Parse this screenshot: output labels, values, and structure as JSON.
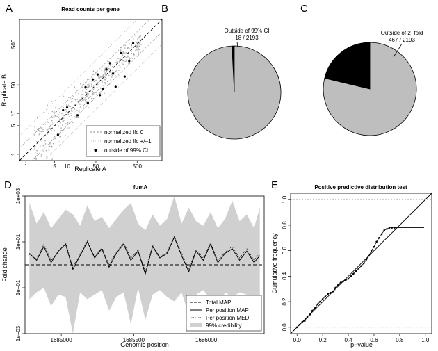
{
  "chart_data": [
    {
      "panel": "A",
      "type": "scatter",
      "title": "Read counts per gene",
      "xlabel": "Replicate A",
      "ylabel": "Replicate B",
      "xscale": "log",
      "yscale": "log",
      "xlim": [
        0.7,
        2000
      ],
      "ylim": [
        0.7,
        2000
      ],
      "xticks": [
        1,
        5,
        10,
        50,
        500
      ],
      "xtick_labels": [
        "1",
        "5",
        "10",
        "50",
        "500"
      ],
      "yticks": [
        1,
        5,
        10,
        50,
        500
      ],
      "ytick_labels": [
        "1",
        "5",
        "10",
        "50",
        "500"
      ],
      "legend_position": "bottom-right",
      "legend": [
        {
          "label": "normalized lfc 0",
          "style": "dashed"
        },
        {
          "label": "normalized lfc +/−1",
          "style": "dotted"
        },
        {
          "label": "outside of 99% CI",
          "style": "point"
        }
      ],
      "outliers": [
        {
          "x": 8,
          "y": 12
        },
        {
          "x": 10,
          "y": 14
        },
        {
          "x": 32,
          "y": 18
        },
        {
          "x": 42,
          "y": 68
        },
        {
          "x": 62,
          "y": 28
        },
        {
          "x": 150,
          "y": 45
        },
        {
          "x": 200,
          "y": 300
        },
        {
          "x": 90,
          "y": 120
        },
        {
          "x": 320,
          "y": 190
        },
        {
          "x": 6,
          "y": 3
        },
        {
          "x": 110,
          "y": 170
        },
        {
          "x": 250,
          "y": 80
        },
        {
          "x": 55,
          "y": 90
        },
        {
          "x": 18,
          "y": 9
        },
        {
          "x": 75,
          "y": 40
        },
        {
          "x": 400,
          "y": 520
        },
        {
          "x": 130,
          "y": 95
        },
        {
          "x": 28,
          "y": 44
        }
      ]
    },
    {
      "panel": "B",
      "type": "pie",
      "slices": [
        {
          "label": "Outside of 99% CI",
          "count": 18,
          "total": 2193,
          "color": "#000000"
        },
        {
          "label": "",
          "count": 2175,
          "total": 2193,
          "color": "#bebebe"
        }
      ],
      "annotation_line1": "Outside of 99% CI",
      "annotation_line2": "18 / 2193"
    },
    {
      "panel": "C",
      "type": "pie",
      "slices": [
        {
          "label": "Outside of 2−fold",
          "count": 467,
          "total": 2193,
          "color": "#000000"
        },
        {
          "label": "",
          "count": 1726,
          "total": 2193,
          "color": "#bebebe"
        }
      ],
      "annotation_line1": "Outside of 2−fold",
      "annotation_line2": "467 / 2193"
    },
    {
      "panel": "D",
      "type": "line",
      "title": "fumA",
      "xlabel": "Genomic position",
      "ylabel": "Fold change",
      "xlim": [
        1684750,
        1686400
      ],
      "ylim_log10": [
        -3,
        3
      ],
      "xticks": [
        1685000,
        1685500,
        1686000
      ],
      "xtick_labels": [
        "1685000",
        "1685500",
        "1686000"
      ],
      "yticks_log10": [
        -3,
        -1,
        1,
        3
      ],
      "ytick_labels": [
        "1e−03",
        "1e−01",
        "1e+01",
        "1e+03"
      ],
      "total_map_log10": 0.0,
      "legend_position": "bottom-right",
      "legend": [
        {
          "label": "Total MAP",
          "style": "dashed"
        },
        {
          "label": "Per position MAP",
          "style": "solid"
        },
        {
          "label": "Per position MED",
          "style": "dotted"
        },
        {
          "label": "99% credibility",
          "style": "band"
        }
      ],
      "series": [
        {
          "name": "Per position MAP",
          "x": [
            1684780,
            1684830,
            1684880,
            1684930,
            1684980,
            1685030,
            1685080,
            1685130,
            1685180,
            1685230,
            1685280,
            1685330,
            1685380,
            1685430,
            1685480,
            1685530,
            1685580,
            1685630,
            1685680,
            1685730,
            1685780,
            1685830,
            1685880,
            1685930,
            1685980,
            1686030,
            1686080,
            1686130,
            1686180,
            1686230,
            1686280,
            1686330,
            1686370
          ],
          "y_log10": [
            0.5,
            0.2,
            0.8,
            0.1,
            0.6,
            0.9,
            -0.2,
            0.4,
            1.0,
            0.3,
            0.7,
            -0.1,
            0.5,
            0.9,
            0.2,
            0.6,
            -0.4,
            0.8,
            0.3,
            0.5,
            1.2,
            0.4,
            -0.3,
            0.6,
            0.2,
            0.9,
            0.1,
            0.5,
            0.7,
            0.2,
            0.6,
            0.1,
            0.4
          ]
        },
        {
          "name": "Per position MED",
          "x": [
            1684780,
            1684830,
            1684880,
            1684930,
            1684980,
            1685030,
            1685080,
            1685130,
            1685180,
            1685230,
            1685280,
            1685330,
            1685380,
            1685430,
            1685480,
            1685530,
            1685580,
            1685630,
            1685680,
            1685730,
            1685780,
            1685830,
            1685880,
            1685930,
            1685980,
            1686030,
            1686080,
            1686130,
            1686180,
            1686230,
            1686280,
            1686330,
            1686370
          ],
          "y_log10": [
            0.45,
            0.25,
            0.9,
            0.2,
            0.55,
            0.95,
            -0.1,
            0.45,
            1.05,
            0.35,
            0.75,
            0.0,
            0.55,
            0.95,
            0.3,
            0.65,
            -0.3,
            0.85,
            0.35,
            0.55,
            1.25,
            0.5,
            -0.2,
            0.65,
            0.3,
            0.95,
            0.2,
            0.55,
            0.8,
            0.3,
            0.7,
            0.2,
            0.5
          ]
        },
        {
          "name": "99% credibility",
          "x": [
            1684780,
            1684830,
            1684880,
            1684930,
            1684980,
            1685030,
            1685080,
            1685130,
            1685180,
            1685230,
            1685280,
            1685330,
            1685380,
            1685430,
            1685480,
            1685530,
            1685580,
            1685630,
            1685680,
            1685730,
            1685780,
            1685830,
            1685880,
            1685930,
            1685980,
            1686030,
            1686080,
            1686130,
            1686180,
            1686230,
            1686280,
            1686330,
            1686370
          ],
          "upper_log10": [
            2.7,
            1.8,
            2.3,
            1.6,
            2.0,
            2.4,
            2.2,
            1.7,
            2.6,
            1.9,
            2.1,
            1.6,
            2.0,
            2.4,
            2.7,
            1.8,
            1.5,
            2.2,
            1.7,
            2.0,
            3.0,
            1.8,
            2.5,
            1.9,
            1.7,
            2.3,
            1.6,
            2.0,
            2.8,
            1.9,
            2.2,
            1.6,
            2.5
          ],
          "lower_log10": [
            -1.5,
            -1.2,
            -1.0,
            -1.8,
            -1.3,
            -1.4,
            -3.0,
            -1.2,
            -1.5,
            -1.3,
            -1.1,
            -2.0,
            -1.4,
            -1.2,
            -2.6,
            -1.0,
            -2.4,
            -1.3,
            -1.1,
            -1.4,
            -1.6,
            -1.2,
            -2.2,
            -1.3,
            -1.1,
            -1.5,
            -1.9,
            -1.2,
            -1.4,
            -1.2,
            -1.3,
            -1.6,
            -1.4
          ]
        }
      ]
    },
    {
      "panel": "E",
      "type": "line",
      "title": "Positive predictive distribution test",
      "xlabel": "p−value",
      "ylabel": "Cumulative frequency",
      "xlim": [
        -0.05,
        1.05
      ],
      "ylim": [
        -0.05,
        1.05
      ],
      "xticks": [
        0.0,
        0.2,
        0.4,
        0.6,
        0.8,
        1.0
      ],
      "xtick_labels": [
        "0.0",
        "0.2",
        "0.4",
        "0.6",
        "0.8",
        "1.0"
      ],
      "yticks": [
        0.0,
        0.2,
        0.4,
        0.6,
        0.8,
        1.0
      ],
      "ytick_labels": [
        "0.0",
        "0.2",
        "0.4",
        "0.6",
        "0.8",
        "1.0"
      ],
      "reference_lines": [
        0,
        1
      ],
      "series": [
        {
          "name": "Empirical CDF",
          "x": [
            0.0,
            0.02,
            0.04,
            0.06,
            0.08,
            0.1,
            0.12,
            0.14,
            0.16,
            0.18,
            0.2,
            0.22,
            0.24,
            0.26,
            0.28,
            0.3,
            0.32,
            0.34,
            0.36,
            0.38,
            0.4,
            0.42,
            0.44,
            0.46,
            0.48,
            0.5,
            0.52,
            0.54,
            0.56,
            0.58,
            0.6,
            0.62,
            0.64,
            0.66,
            0.68,
            0.7,
            0.72,
            0.74,
            0.76
          ],
          "y": [
            0.0,
            0.02,
            0.04,
            0.05,
            0.08,
            0.1,
            0.13,
            0.15,
            0.18,
            0.2,
            0.22,
            0.24,
            0.26,
            0.27,
            0.28,
            0.31,
            0.33,
            0.35,
            0.36,
            0.37,
            0.38,
            0.4,
            0.42,
            0.44,
            0.46,
            0.48,
            0.5,
            0.53,
            0.56,
            0.6,
            0.63,
            0.67,
            0.7,
            0.73,
            0.76,
            0.77,
            0.78,
            0.78,
            0.78
          ]
        },
        {
          "name": "Flat tail",
          "x": [
            0.76,
            0.99
          ],
          "y": [
            0.78,
            0.78
          ]
        },
        {
          "name": "Uniform reference",
          "x": [
            0.0,
            1.0
          ],
          "y": [
            0.0,
            1.0
          ]
        }
      ]
    }
  ]
}
